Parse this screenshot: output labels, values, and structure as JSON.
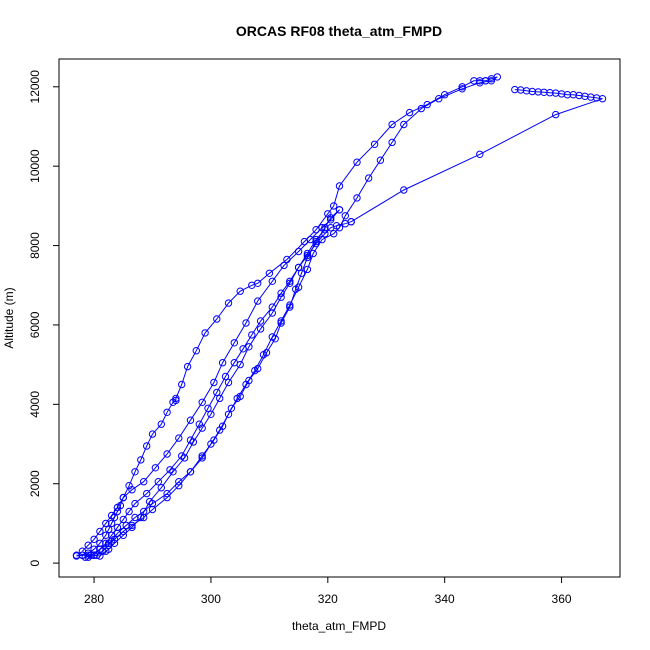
{
  "chart_data": {
    "type": "line",
    "title": "ORCAS RF08 theta_atm_FMPD",
    "xlabel": "theta_atm_FMPD",
    "ylabel": "Altitude (m)",
    "xlim": [
      274,
      370
    ],
    "ylim": [
      -350,
      12700
    ],
    "xticks": [
      280,
      300,
      320,
      340,
      360
    ],
    "yticks": [
      0,
      2000,
      4000,
      6000,
      8000,
      10000,
      12000
    ],
    "grid": false,
    "series": [
      {
        "values": [
          [
            277,
            180
          ],
          [
            278,
            200
          ],
          [
            279,
            250
          ],
          [
            280,
            350
          ],
          [
            281,
            500
          ],
          [
            282,
            700
          ],
          [
            282.5,
            850
          ],
          [
            283,
            1000
          ],
          [
            283.5,
            1150
          ],
          [
            284,
            1300
          ],
          [
            284.5,
            1450
          ],
          [
            285,
            1650
          ],
          [
            286,
            1950
          ],
          [
            287,
            2300
          ],
          [
            288,
            2600
          ],
          [
            289,
            2950
          ],
          [
            290,
            3250
          ],
          [
            291.5,
            3500
          ],
          [
            292.5,
            3800
          ],
          [
            293.5,
            4050
          ],
          [
            294,
            4100
          ],
          [
            294,
            4150
          ],
          [
            295,
            4500
          ],
          [
            296,
            4950
          ],
          [
            297.5,
            5350
          ],
          [
            299,
            5800
          ],
          [
            301,
            6150
          ],
          [
            303,
            6550
          ],
          [
            305,
            6850
          ],
          [
            307,
            7000
          ],
          [
            308,
            7050
          ],
          [
            310,
            7300
          ],
          [
            313,
            7650
          ],
          [
            316,
            8100
          ],
          [
            318,
            8400
          ],
          [
            320,
            8800
          ],
          [
            321,
            9000
          ],
          [
            322,
            9500
          ],
          [
            325,
            10100
          ],
          [
            328,
            10550
          ],
          [
            331,
            11050
          ],
          [
            334,
            11350
          ],
          [
            337,
            11550
          ],
          [
            340,
            11800
          ],
          [
            343,
            12000
          ],
          [
            345,
            12150
          ],
          [
            346,
            12150
          ],
          [
            347,
            12150
          ]
        ]
      },
      {
        "values": [
          [
            347,
            12150
          ],
          [
            348,
            12200
          ],
          [
            349,
            12250
          ],
          [
            348,
            12150
          ],
          [
            346,
            12100
          ],
          [
            343,
            11950
          ],
          [
            339,
            11700
          ],
          [
            336,
            11450
          ],
          [
            333,
            11050
          ],
          [
            331,
            10600
          ],
          [
            329,
            10150
          ],
          [
            327,
            9700
          ],
          [
            325,
            9200
          ],
          [
            323,
            8750
          ],
          [
            322,
            8450
          ],
          [
            321,
            8300
          ],
          [
            319,
            8150
          ],
          [
            317.5,
            7800
          ],
          [
            316.5,
            7400
          ],
          [
            315,
            6950
          ],
          [
            313.5,
            6500
          ],
          [
            312,
            6100
          ],
          [
            310.5,
            5700
          ],
          [
            309,
            5250
          ],
          [
            307.5,
            4850
          ],
          [
            306,
            4500
          ],
          [
            304.5,
            4150
          ],
          [
            303,
            3750
          ],
          [
            301.5,
            3350
          ],
          [
            300,
            3000
          ],
          [
            298.5,
            2650
          ],
          [
            296.5,
            2300
          ],
          [
            294.5,
            2050
          ],
          [
            292.5,
            1750
          ],
          [
            290,
            1500
          ],
          [
            288.5,
            1300
          ],
          [
            287,
            1150
          ],
          [
            285.5,
            950
          ],
          [
            284,
            750
          ],
          [
            283,
            550
          ],
          [
            282.5,
            450
          ],
          [
            281.5,
            300
          ],
          [
            280.5,
            200
          ],
          [
            279,
            150
          ]
        ]
      },
      {
        "values": [
          [
            278,
            300
          ],
          [
            279,
            450
          ],
          [
            280,
            600
          ],
          [
            281,
            800
          ],
          [
            282,
            1000
          ],
          [
            283,
            1200
          ],
          [
            284,
            1400
          ],
          [
            285,
            1650
          ],
          [
            286.5,
            1850
          ],
          [
            288.5,
            2050
          ],
          [
            290.5,
            2400
          ],
          [
            292.5,
            2750
          ],
          [
            294.5,
            3150
          ],
          [
            296.5,
            3600
          ],
          [
            298.5,
            4050
          ],
          [
            300.5,
            4550
          ],
          [
            302,
            5050
          ],
          [
            304,
            5550
          ],
          [
            306,
            6050
          ],
          [
            308,
            6600
          ],
          [
            310.5,
            7100
          ],
          [
            312.5,
            7500
          ],
          [
            315,
            7850
          ],
          [
            317,
            8150
          ],
          [
            319,
            8450
          ],
          [
            320.5,
            8650
          ],
          [
            322,
            8900
          ]
        ]
      },
      {
        "values": [
          [
            322,
            8900
          ],
          [
            320.5,
            8700
          ],
          [
            319.5,
            8450
          ],
          [
            318,
            8100
          ],
          [
            316.5,
            7700
          ],
          [
            315.5,
            7300
          ],
          [
            314.5,
            6900
          ],
          [
            313.5,
            6450
          ],
          [
            312,
            6050
          ],
          [
            311,
            5650
          ],
          [
            309.5,
            5300
          ],
          [
            308,
            4900
          ],
          [
            306.5,
            4600
          ],
          [
            305,
            4200
          ],
          [
            303.5,
            3900
          ],
          [
            302,
            3450
          ],
          [
            300.5,
            3100
          ],
          [
            298.5,
            2700
          ],
          [
            296.5,
            2300
          ],
          [
            294.5,
            1950
          ],
          [
            292.5,
            1650
          ],
          [
            290,
            1350
          ],
          [
            288.5,
            1150
          ],
          [
            286.5,
            950
          ],
          [
            285,
            800
          ],
          [
            283.5,
            600
          ],
          [
            282.5,
            500
          ],
          [
            281,
            350
          ],
          [
            279.5,
            200
          ],
          [
            278.5,
            150
          ]
        ]
      },
      {
        "values": [
          [
            280,
            200
          ],
          [
            281,
            350
          ],
          [
            282,
            500
          ],
          [
            283,
            700
          ],
          [
            284,
            900
          ],
          [
            285,
            1100
          ],
          [
            286,
            1300
          ],
          [
            287,
            1500
          ],
          [
            289,
            1750
          ],
          [
            291,
            2050
          ],
          [
            293,
            2350
          ],
          [
            295,
            2700
          ],
          [
            296.5,
            3100
          ],
          [
            298,
            3500
          ],
          [
            299.5,
            3900
          ],
          [
            301,
            4300
          ],
          [
            302.5,
            4700
          ],
          [
            304,
            5050
          ],
          [
            305.5,
            5400
          ],
          [
            307,
            5750
          ],
          [
            308.5,
            6100
          ],
          [
            310.5,
            6450
          ],
          [
            312,
            6800
          ],
          [
            313.5,
            7100
          ],
          [
            315,
            7450
          ],
          [
            316.5,
            7750
          ],
          [
            318,
            8050
          ],
          [
            319.5,
            8300
          ],
          [
            320.5,
            8450
          ],
          [
            321.5,
            8500
          ],
          [
            323,
            8550
          ],
          [
            324,
            8600
          ]
        ]
      },
      {
        "values": [
          [
            324,
            8600
          ],
          [
            333,
            9400
          ],
          [
            346,
            10300
          ],
          [
            359,
            11300
          ],
          [
            367,
            11700
          ],
          [
            366,
            11720
          ],
          [
            365,
            11740
          ],
          [
            364,
            11760
          ],
          [
            363,
            11780
          ],
          [
            362,
            11800
          ],
          [
            361,
            11800
          ],
          [
            360,
            11820
          ],
          [
            359,
            11840
          ],
          [
            358,
            11850
          ],
          [
            357,
            11860
          ],
          [
            356,
            11870
          ],
          [
            355,
            11880
          ],
          [
            354,
            11900
          ],
          [
            353,
            11920
          ],
          [
            352,
            11930
          ]
        ]
      },
      {
        "values": [
          [
            277,
            200
          ],
          [
            278,
            200
          ],
          [
            279,
            200
          ],
          [
            280,
            200
          ],
          [
            281,
            180
          ],
          [
            282,
            300
          ],
          [
            282.5,
            350
          ],
          [
            283.5,
            500
          ],
          [
            285,
            700
          ],
          [
            286.5,
            900
          ],
          [
            288,
            1150
          ],
          [
            289.5,
            1550
          ],
          [
            291.5,
            1900
          ],
          [
            293.5,
            2300
          ],
          [
            295.5,
            2650
          ],
          [
            297,
            3050
          ],
          [
            298.5,
            3400
          ],
          [
            300,
            3750
          ],
          [
            301.5,
            4150
          ],
          [
            303,
            4550
          ],
          [
            305,
            5000
          ],
          [
            306.5,
            5450
          ],
          [
            308.5,
            5900
          ],
          [
            310.5,
            6300
          ],
          [
            312,
            6700
          ],
          [
            313.5,
            7050
          ],
          [
            315,
            7450
          ],
          [
            316.5,
            7800
          ],
          [
            318,
            8150
          ],
          [
            319.5,
            8400
          ]
        ]
      }
    ]
  }
}
